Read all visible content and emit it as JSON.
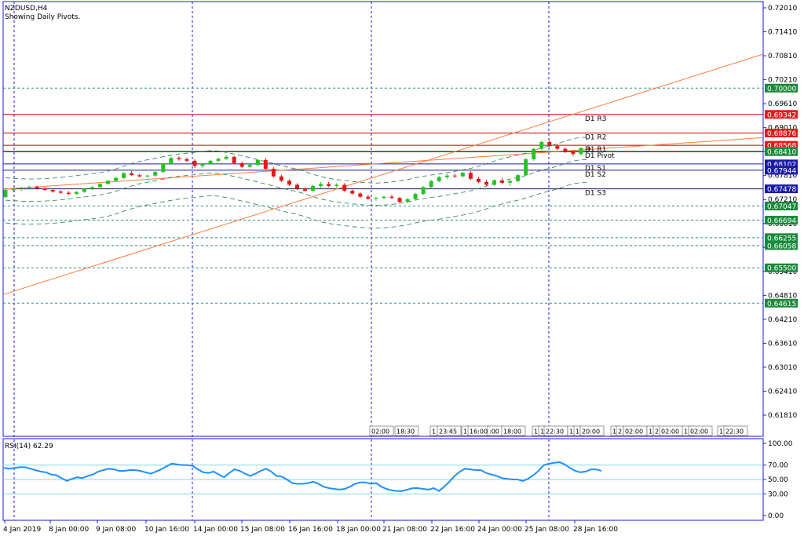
{
  "header": {
    "symbol": "NZDUSD,H4",
    "subtitle": "Showing Daily Pivots."
  },
  "rsi": {
    "label": "RSI(14) 62.29",
    "ticks": [
      "100.00",
      "70.00",
      "50.00",
      "30.00",
      "0.00"
    ],
    "levels": [
      70,
      50,
      30
    ],
    "line_color": "#1e90ff"
  },
  "price_axis": {
    "ticks": [
      "0.72010",
      "0.71410",
      "0.70810",
      "0.70210",
      "0.69610",
      "0.69010",
      "0.68410",
      "0.67810",
      "0.67210",
      "0.66610",
      "0.66010",
      "0.65410",
      "0.64810",
      "0.64210",
      "0.63610",
      "0.63010",
      "0.62410",
      "0.61810"
    ]
  },
  "level_tags": [
    {
      "value": 0.7,
      "label": "0.70000",
      "color": "#1a8a3a"
    },
    {
      "value": 0.69342,
      "label": "0.69342",
      "color": "#e31a1a"
    },
    {
      "value": 0.68876,
      "label": "0.68876",
      "color": "#e31a1a"
    },
    {
      "value": 0.68568,
      "label": "0.68568",
      "color": "#e31a1a"
    },
    {
      "value": 0.6841,
      "label": "0.68410",
      "color": "#1a8a3a"
    },
    {
      "value": 0.68102,
      "label": "0.68102",
      "color": "#1a1aa8"
    },
    {
      "value": 0.67944,
      "label": "0.67944",
      "color": "#1a1aa8"
    },
    {
      "value": 0.67478,
      "label": "0.67478",
      "color": "#1a1aa8"
    },
    {
      "value": 0.67047,
      "label": "0.67047",
      "color": "#1a8a3a"
    },
    {
      "value": 0.66694,
      "label": "0.66694",
      "color": "#1a8a3a"
    },
    {
      "value": 0.66255,
      "label": "0.66255",
      "color": "#1a8a3a"
    },
    {
      "value": 0.66058,
      "label": "0.66058",
      "color": "#1a8a3a"
    },
    {
      "value": 0.655,
      "label": "0.65500",
      "color": "#1a8a3a"
    },
    {
      "value": 0.64615,
      "label": "0.64615",
      "color": "#1a8a3a"
    }
  ],
  "pivot_labels": [
    "D1 R3",
    "D1 R2",
    "D1 R1",
    "D1 Pivot",
    "D1 S1",
    "D1 S2",
    "D1 S3"
  ],
  "time_axis": [
    "4 Jan 2019",
    "8 Jan 00:00",
    "9 Jan 08:00",
    "10 Jan 16:00",
    "14 Jan 00:00",
    "15 Jan 08:00",
    "16 Jan 16:00",
    "18 Jan 00:00",
    "21 Jan 08:00",
    "22 Jan 16:00",
    "24 Jan 00:00",
    "25 Jan 08:00",
    "28 Jan 16:00"
  ],
  "small_time_labels": [
    "02:00",
    "18:30",
    "1",
    "23:45",
    "1",
    "16:00",
    ":00",
    "18:00",
    "1",
    "1",
    "22:30",
    "1",
    "1",
    "20:00",
    "1",
    "2",
    "02:00",
    "1",
    "2",
    "02:00",
    "18",
    "02:00",
    "17",
    "22:30"
  ],
  "colors": {
    "bull": "#22c422",
    "bear": "#e31a1a",
    "channel": "#ff7a3a",
    "grid": "#1a1ad0",
    "axis": "#1a1ad0"
  },
  "chart_data": {
    "type": "candlestick",
    "symbol": "NZDUSD,H4",
    "ylim": [
      0.617,
      0.721
    ],
    "series": [
      {
        "name": "ohlc",
        "values": [
          [
            0.6727,
            0.675,
            0.6725,
            0.6745
          ],
          [
            0.6745,
            0.6752,
            0.674,
            0.6748
          ],
          [
            0.6748,
            0.6752,
            0.6742,
            0.675
          ],
          [
            0.675,
            0.6756,
            0.6746,
            0.6753
          ],
          [
            0.6753,
            0.6756,
            0.6746,
            0.6749
          ],
          [
            0.6749,
            0.6752,
            0.6742,
            0.6745
          ],
          [
            0.6745,
            0.6748,
            0.6738,
            0.6741
          ],
          [
            0.6741,
            0.6745,
            0.6735,
            0.6738
          ],
          [
            0.6738,
            0.6742,
            0.6732,
            0.6735
          ],
          [
            0.6735,
            0.6742,
            0.6733,
            0.674
          ],
          [
            0.674,
            0.675,
            0.6738,
            0.6748
          ],
          [
            0.6748,
            0.6755,
            0.6745,
            0.6752
          ],
          [
            0.6752,
            0.6762,
            0.675,
            0.676
          ],
          [
            0.676,
            0.677,
            0.6758,
            0.6768
          ],
          [
            0.6768,
            0.6778,
            0.6765,
            0.6775
          ],
          [
            0.6775,
            0.679,
            0.6772,
            0.6787
          ],
          [
            0.6787,
            0.6795,
            0.678,
            0.6782
          ],
          [
            0.6782,
            0.6786,
            0.6776,
            0.6779
          ],
          [
            0.6779,
            0.6783,
            0.6775,
            0.6781
          ],
          [
            0.6781,
            0.6792,
            0.6778,
            0.679
          ],
          [
            0.679,
            0.6812,
            0.6788,
            0.681
          ],
          [
            0.681,
            0.6828,
            0.6808,
            0.6825
          ],
          [
            0.6825,
            0.683,
            0.6818,
            0.6822
          ],
          [
            0.6822,
            0.6826,
            0.6815,
            0.6818
          ],
          [
            0.6818,
            0.6822,
            0.68,
            0.6805
          ],
          [
            0.6805,
            0.6812,
            0.68,
            0.681
          ],
          [
            0.681,
            0.682,
            0.6808,
            0.6818
          ],
          [
            0.6818,
            0.6826,
            0.6815,
            0.6823
          ],
          [
            0.6823,
            0.6832,
            0.682,
            0.6828
          ],
          [
            0.6828,
            0.683,
            0.681,
            0.6812
          ],
          [
            0.6812,
            0.6816,
            0.68,
            0.6803
          ],
          [
            0.6803,
            0.681,
            0.68,
            0.6808
          ],
          [
            0.6808,
            0.6822,
            0.6805,
            0.682
          ],
          [
            0.682,
            0.6825,
            0.6795,
            0.6798
          ],
          [
            0.6798,
            0.6802,
            0.6776,
            0.6779
          ],
          [
            0.6779,
            0.6783,
            0.6765,
            0.6768
          ],
          [
            0.6768,
            0.6772,
            0.6755,
            0.6758
          ],
          [
            0.6758,
            0.6762,
            0.6745,
            0.6748
          ],
          [
            0.6748,
            0.6752,
            0.674,
            0.6743
          ],
          [
            0.6743,
            0.6758,
            0.674,
            0.6755
          ],
          [
            0.6755,
            0.6765,
            0.675,
            0.676
          ],
          [
            0.676,
            0.6765,
            0.6752,
            0.6755
          ],
          [
            0.6755,
            0.6762,
            0.675,
            0.6758
          ],
          [
            0.6758,
            0.6762,
            0.674,
            0.6743
          ],
          [
            0.6743,
            0.6746,
            0.6733,
            0.6736
          ],
          [
            0.6736,
            0.674,
            0.6725,
            0.6728
          ],
          [
            0.6728,
            0.6733,
            0.672,
            0.6723
          ],
          [
            0.6723,
            0.6728,
            0.6718,
            0.6725
          ],
          [
            0.6725,
            0.673,
            0.6722,
            0.6728
          ],
          [
            0.6728,
            0.6733,
            0.6722,
            0.6725
          ],
          [
            0.6725,
            0.6728,
            0.6712,
            0.6715
          ],
          [
            0.6715,
            0.6725,
            0.6712,
            0.6722
          ],
          [
            0.6722,
            0.6738,
            0.672,
            0.6735
          ],
          [
            0.6735,
            0.6755,
            0.6732,
            0.6752
          ],
          [
            0.6752,
            0.677,
            0.675,
            0.6767
          ],
          [
            0.6767,
            0.678,
            0.6764,
            0.6777
          ],
          [
            0.6777,
            0.6785,
            0.6772,
            0.6781
          ],
          [
            0.6781,
            0.6786,
            0.6775,
            0.6779
          ],
          [
            0.6779,
            0.679,
            0.6776,
            0.6788
          ],
          [
            0.6788,
            0.6792,
            0.677,
            0.6773
          ],
          [
            0.6773,
            0.6778,
            0.6762,
            0.6765
          ],
          [
            0.6765,
            0.677,
            0.6755,
            0.6758
          ],
          [
            0.6758,
            0.6772,
            0.6755,
            0.6769
          ],
          [
            0.6769,
            0.6775,
            0.676,
            0.6763
          ],
          [
            0.6763,
            0.677,
            0.6755,
            0.6767
          ],
          [
            0.6767,
            0.6785,
            0.6765,
            0.6782
          ],
          [
            0.6782,
            0.6825,
            0.678,
            0.6822
          ],
          [
            0.6822,
            0.685,
            0.6818,
            0.6848
          ],
          [
            0.6848,
            0.6868,
            0.6845,
            0.6865
          ],
          [
            0.6865,
            0.687,
            0.6852,
            0.6855
          ],
          [
            0.6855,
            0.686,
            0.6845,
            0.6848
          ],
          [
            0.6848,
            0.6852,
            0.6838,
            0.6841
          ],
          [
            0.6841,
            0.6845,
            0.683,
            0.6835
          ],
          [
            0.6835,
            0.6852,
            0.6832,
            0.685
          ],
          [
            0.685,
            0.6855,
            0.6842,
            0.6846
          ]
        ]
      }
    ],
    "horizontal_levels": [
      0.7,
      0.69342,
      0.68876,
      0.68568,
      0.6841,
      0.68102,
      0.67944,
      0.67478,
      0.67047,
      0.66694,
      0.66255,
      0.66058,
      0.655,
      0.64615
    ],
    "channel_lines": [
      {
        "from": [
          0,
          0.6483
        ],
        "to": [
          1,
          0.7085
        ]
      },
      {
        "from": [
          0,
          0.6747
        ],
        "to": [
          1,
          0.6876
        ]
      }
    ],
    "rsi_values": [
      66,
      65,
      66,
      67,
      67,
      65,
      63,
      61,
      60,
      57,
      56,
      52,
      48,
      51,
      53,
      52,
      55,
      57,
      61,
      63,
      65,
      64,
      62,
      62,
      63,
      63,
      62,
      60,
      58,
      61,
      64,
      68,
      72,
      71,
      70,
      70,
      69,
      64,
      60,
      59,
      61,
      57,
      53,
      59,
      64,
      62,
      58,
      55,
      58,
      62,
      65,
      61,
      55,
      54,
      50,
      45,
      44,
      44,
      45,
      47,
      44,
      40,
      38,
      37,
      36,
      37,
      40,
      44,
      46,
      46,
      44,
      45,
      40,
      37,
      35,
      34,
      34,
      36,
      38,
      38,
      37,
      36,
      38,
      34,
      40,
      47,
      55,
      61,
      65,
      64,
      63,
      63,
      59,
      57,
      55,
      52,
      51,
      50,
      50,
      48,
      51,
      56,
      62,
      70,
      72,
      73,
      74,
      71,
      66,
      62,
      60,
      61,
      64,
      64,
      62
    ]
  }
}
